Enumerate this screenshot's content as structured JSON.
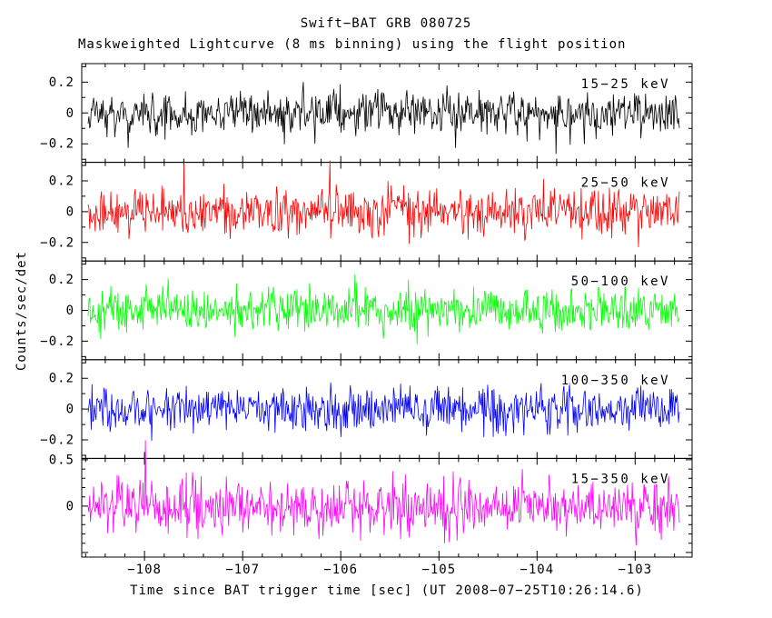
{
  "header": {
    "title": "Swift−BAT GRB 080725",
    "subtitle": "Maskweighted Lightcurve (8 ms binning) using the flight position"
  },
  "axes": {
    "xlabel": "Time since BAT trigger time [sec] (UT 2008−07−25T10:26:14.6)",
    "ylabel": "Counts/sec/det"
  },
  "chart_data": {
    "type": "line",
    "title": "Swift−BAT GRB 080725",
    "subtitle": "Maskweighted Lightcurve (8 ms binning) using the flight position",
    "xlabel": "Time since BAT trigger time [sec] (UT 2008−07−25T10:26:14.6)",
    "ylabel": "Counts/sec/det",
    "grid": false,
    "x_range_sec": [
      -108.64,
      -102.42
    ],
    "x_ticks": [
      -108,
      -107,
      -106,
      -105,
      -104,
      -103
    ],
    "x_minor_step": 0.2,
    "data_t_start": -108.575,
    "data_t_end": -102.55,
    "n_bins": 754,
    "bin_size_ms": 8,
    "panels": [
      {
        "energy_band": "15−25 keV",
        "color": "#000000",
        "y_major_ticks": [
          -0.2,
          0,
          0.2
        ],
        "y_labeled_ticks": [
          0.2,
          0,
          -0.2
        ],
        "y_minor_step": 0.1,
        "y_value_range": [
          -0.32,
          0.32
        ],
        "noise": {
          "mean": 0,
          "sigma": 0.07,
          "spike_prob": 0.006,
          "spike_scale": 3.2,
          "seed": 11
        }
      },
      {
        "energy_band": "25−50 keV",
        "color": "#ff0000",
        "y_major_ticks": [
          -0.2,
          0,
          0.2
        ],
        "y_labeled_ticks": [
          0.2,
          0,
          -0.2
        ],
        "y_minor_step": 0.1,
        "y_value_range": [
          -0.32,
          0.32
        ],
        "noise": {
          "mean": 0,
          "sigma": 0.072,
          "spike_prob": 0.007,
          "spike_scale": 3.3,
          "seed": 22
        }
      },
      {
        "energy_band": "50−100 keV",
        "color": "#00ff00",
        "y_major_ticks": [
          -0.2,
          0,
          0.2
        ],
        "y_labeled_ticks": [
          0.2,
          0,
          -0.2
        ],
        "y_minor_step": 0.1,
        "y_value_range": [
          -0.32,
          0.32
        ],
        "noise": {
          "mean": 0,
          "sigma": 0.07,
          "spike_prob": 0.006,
          "spike_scale": 3.1,
          "seed": 33
        }
      },
      {
        "energy_band": "100−350 keV",
        "color": "#0000ff",
        "y_major_ticks": [
          -0.2,
          0,
          0.2
        ],
        "y_labeled_ticks": [
          0.2,
          0,
          -0.2
        ],
        "y_minor_step": 0.1,
        "y_value_range": [
          -0.32,
          0.32
        ],
        "noise": {
          "mean": 0,
          "sigma": 0.07,
          "spike_prob": 0.006,
          "spike_scale": 3.3,
          "seed": 44
        }
      },
      {
        "energy_band": "15−350 keV",
        "color": "#ff00ff",
        "y_major_ticks": [
          -0.5,
          0,
          0.5
        ],
        "y_labeled_ticks": [
          0.5,
          0
        ],
        "y_minor_step": 0.1,
        "y_value_range": [
          -0.55,
          0.515
        ],
        "noise": {
          "mean": 0,
          "sigma": 0.14,
          "spike_prob": 0.006,
          "spike_scale": 3.0,
          "seed": 55
        }
      }
    ]
  }
}
